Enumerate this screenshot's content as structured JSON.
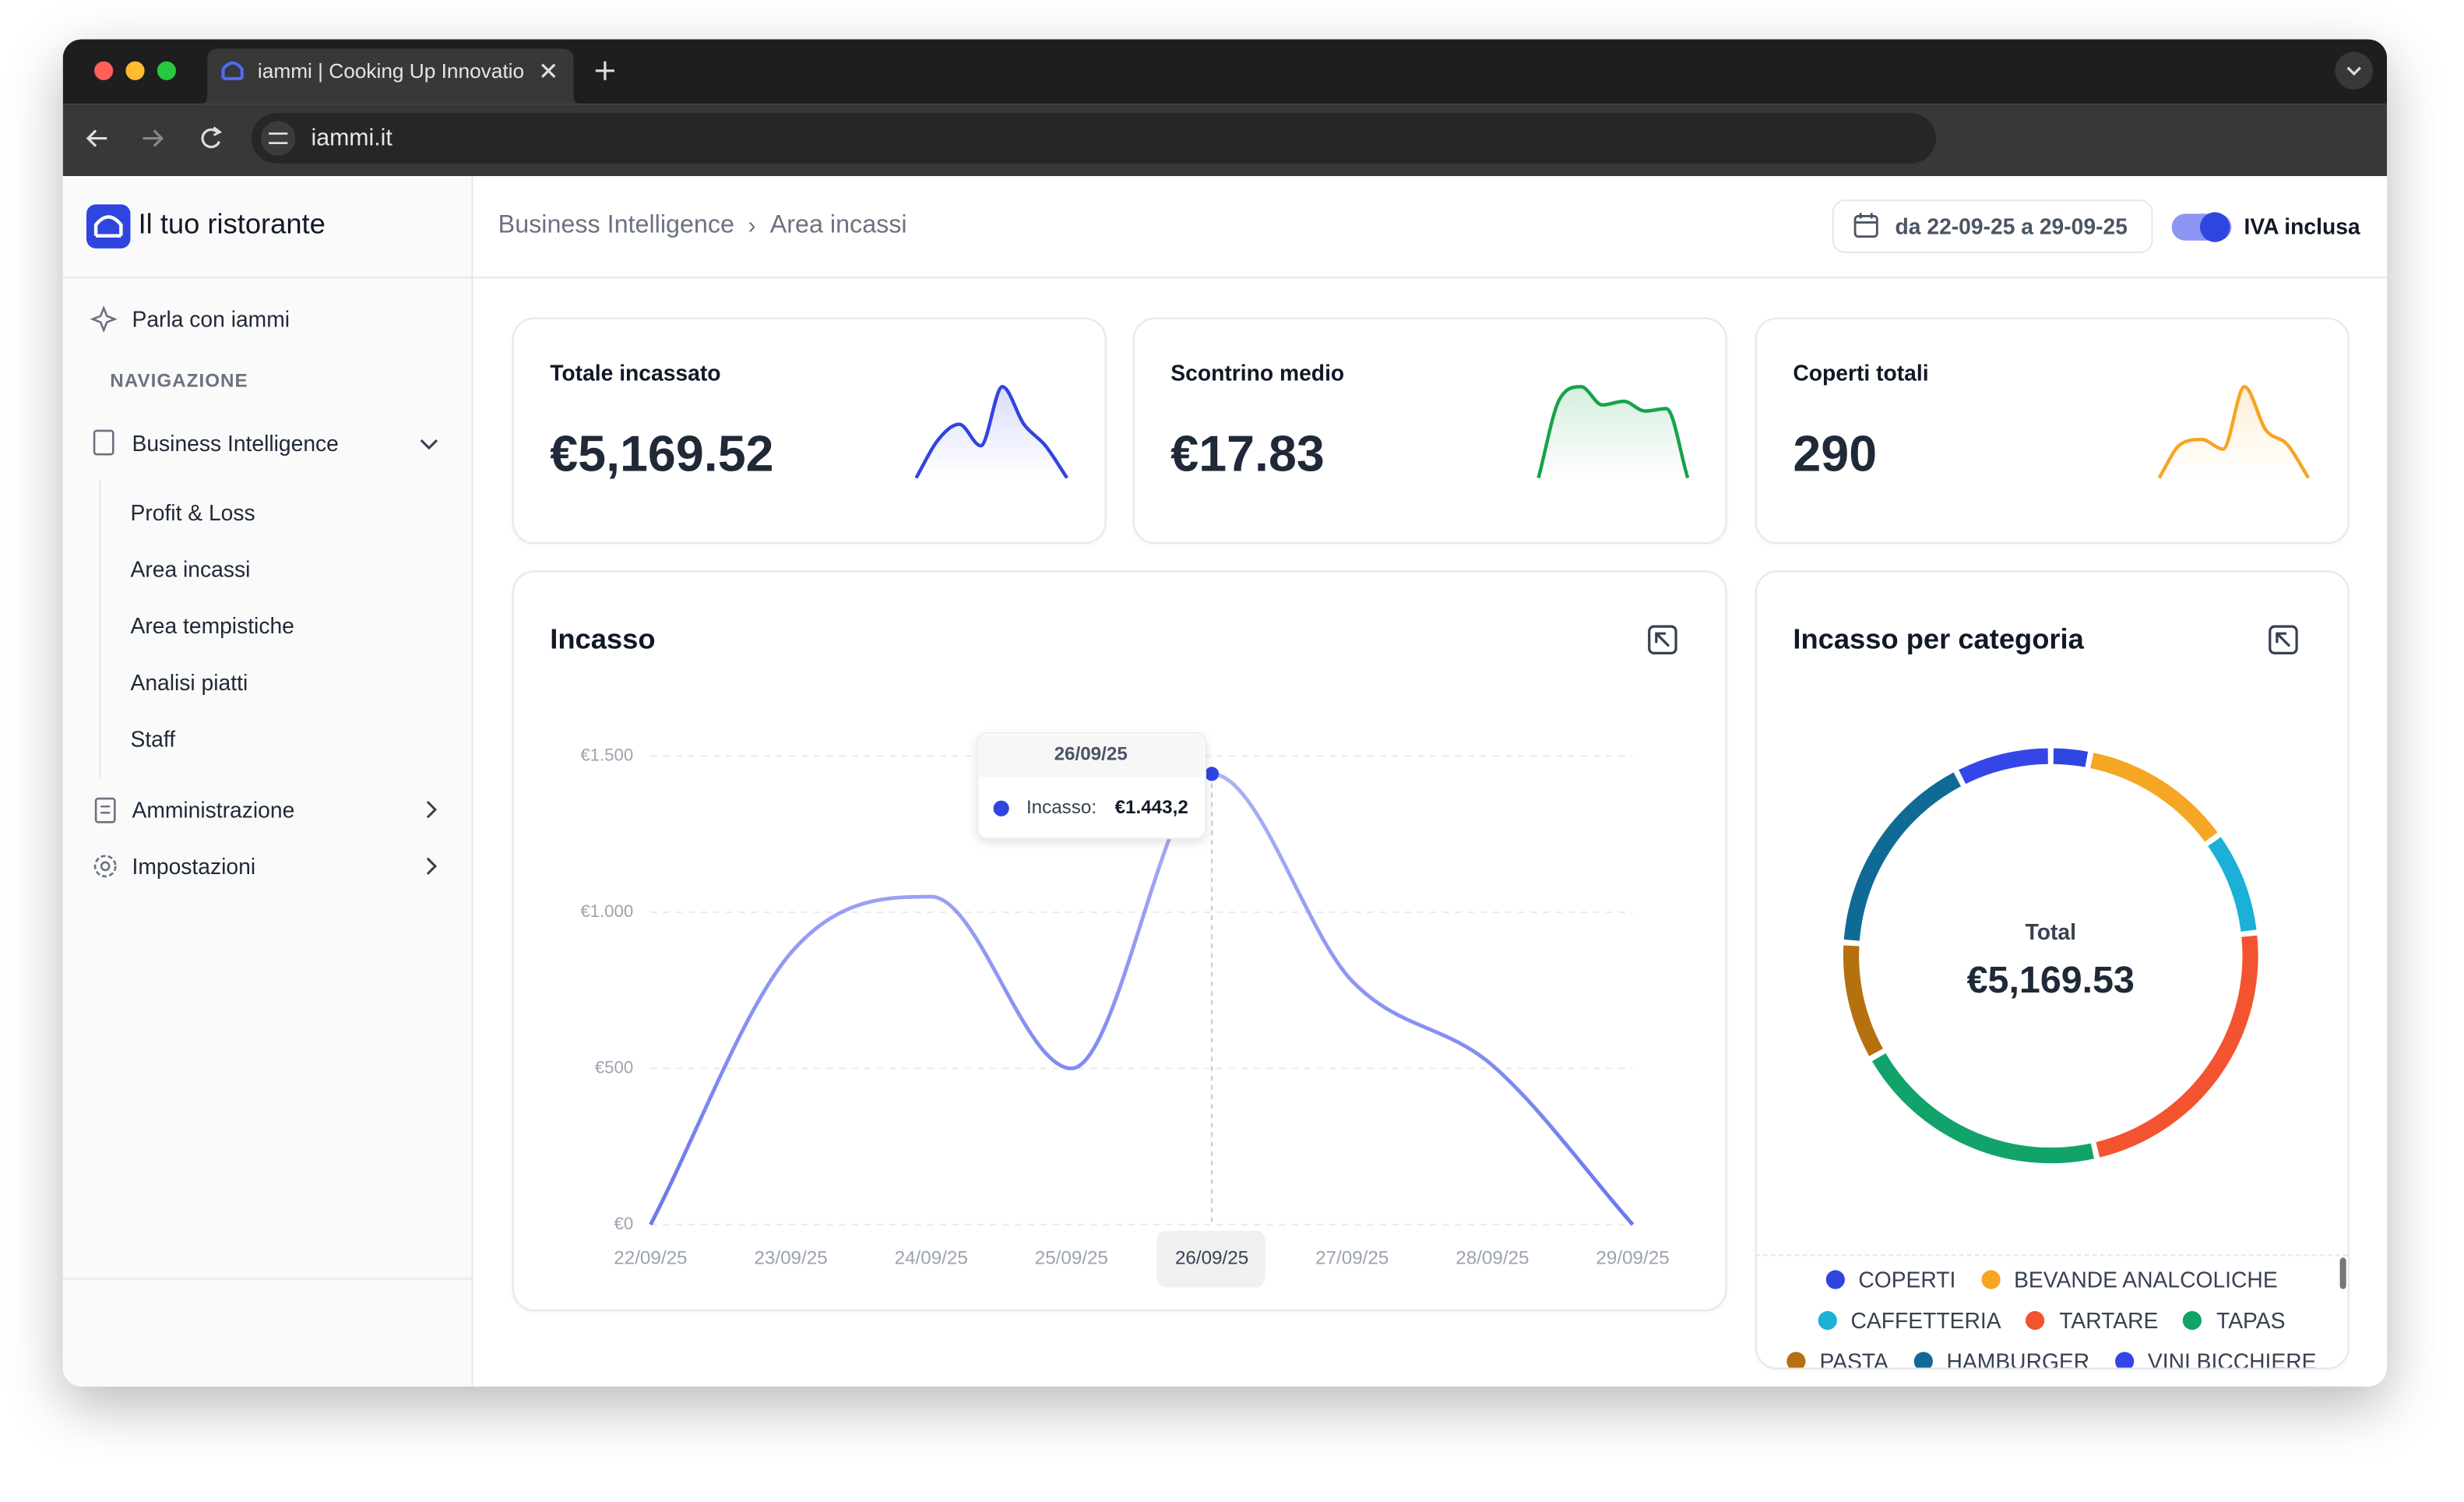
{
  "browser": {
    "tab_title": "iammi | Cooking Up Innovatio",
    "url": "iammi.it"
  },
  "sidebar": {
    "brand": "Il tuo ristorante",
    "ask": "Parla con iammi",
    "section": "NAVIGAZIONE",
    "groups": [
      {
        "label": "Business Intelligence",
        "items": [
          "Profit & Loss",
          "Area incassi",
          "Area tempistiche",
          "Analisi piatti",
          "Staff"
        ]
      },
      {
        "label": "Amministrazione"
      },
      {
        "label": "Impostazioni"
      }
    ]
  },
  "header": {
    "breadcrumb": [
      "Business Intelligence",
      "Area incassi"
    ],
    "breadcrumb_separator": "›",
    "date_range": "da 22-09-25 a 29-09-25",
    "vat_toggle": "IVA inclusa"
  },
  "kpis": [
    {
      "title": "Totale incassato",
      "value": "€5,169.52",
      "color": "#2f45e0",
      "sparkline": [
        5,
        40,
        55,
        35,
        90,
        55,
        35,
        5
      ]
    },
    {
      "title": "Scontrino medio",
      "value": "€17.83",
      "color": "#16a34a",
      "sparkline": [
        5,
        70,
        80,
        65,
        68,
        60,
        62,
        5
      ]
    },
    {
      "title": "Coperti totali",
      "value": "290",
      "color": "#f5a524",
      "sparkline": [
        5,
        40,
        45,
        35,
        100,
        55,
        40,
        5
      ]
    }
  ],
  "chart_data": [
    {
      "type": "line",
      "title": "Incasso",
      "categories": [
        "22/09/25",
        "23/09/25",
        "24/09/25",
        "25/09/25",
        "26/09/25",
        "27/09/25",
        "28/09/25",
        "29/09/25"
      ],
      "series": [
        {
          "name": "Incasso",
          "color": "#6b76ee",
          "values": [
            0,
            870,
            1050,
            500,
            1443.2,
            780,
            510,
            0
          ],
          "value_labels": [
            null,
            null,
            null,
            null,
            "€1.443,2",
            null,
            null,
            null
          ]
        }
      ],
      "ylim": [
        0,
        1500
      ],
      "yticks": [
        {
          "value": 0,
          "label": "€0"
        },
        {
          "value": 500,
          "label": "€500"
        },
        {
          "value": 1000,
          "label": "€1.000"
        },
        {
          "value": 1500,
          "label": "€1.500"
        }
      ],
      "grid": true,
      "tooltip": {
        "category": "26/09/25",
        "label": "Incasso:"
      }
    },
    {
      "type": "donut",
      "title": "Incasso per categoria",
      "center_label": "Total",
      "center_value": "€5,169.53",
      "categories": [
        "COPERTI",
        "BEVANDE ANALCOLICHE",
        "CAFFETTERIA",
        "TARTARE",
        "TAPAS",
        "PASTA",
        "HAMBURGER",
        "VINI BICCHIERE"
      ],
      "values": [
        160,
        620,
        420,
        1200,
        1050,
        480,
        850,
        389.53
      ],
      "colors": [
        "#2f45e0",
        "#f5a623",
        "#1ab0d8",
        "#f4532f",
        "#12a36b",
        "#b5700f",
        "#0f6b96",
        "#3446e8"
      ]
    }
  ]
}
